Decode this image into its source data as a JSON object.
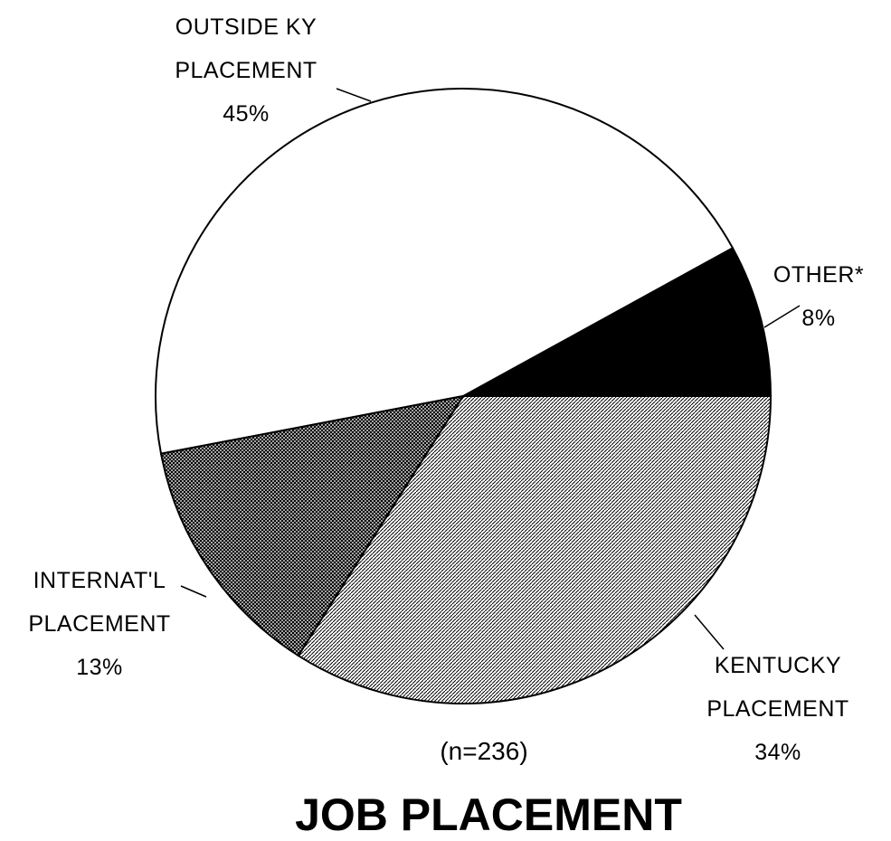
{
  "chart_data": {
    "type": "pie",
    "title": "JOB PLACEMENT",
    "note": "(n=236)",
    "categories": [
      "OTHER*",
      "OUTSIDE KY\nPLACEMENT",
      "INTERNAT'L\nPLACEMENT",
      "KENTUCKY\nPLACEMENT"
    ],
    "values": [
      8,
      45,
      13,
      34
    ],
    "value_labels": [
      "8%",
      "45%",
      "13%",
      "34%"
    ],
    "colors": [
      "#000000",
      "#ffffff",
      "#4a4a4a",
      "#b4b4b4"
    ]
  }
}
